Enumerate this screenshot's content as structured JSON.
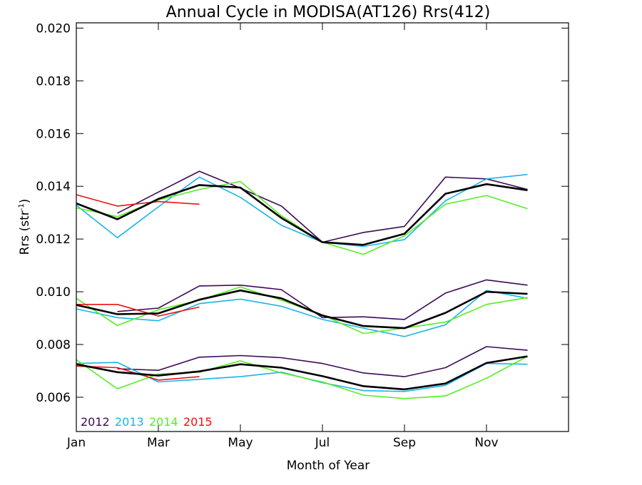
{
  "chart_data": {
    "type": "line",
    "title": "Annual Cycle in MODISA(AT126) Rrs(412)",
    "xlabel": "Month of Year",
    "ylabel": {
      "main": "Rrs (str",
      "sup": "-1",
      "close": ")"
    },
    "x_ticks": [
      {
        "label": "Jan",
        "month": 1
      },
      {
        "label": "Mar",
        "month": 3
      },
      {
        "label": "May",
        "month": 5
      },
      {
        "label": "Jul",
        "month": 7
      },
      {
        "label": "Sep",
        "month": 9
      },
      {
        "label": "Nov",
        "month": 11
      }
    ],
    "xlim": [
      1,
      13
    ],
    "ylim": [
      0.0047,
      0.0202
    ],
    "y_ticks": [
      0.006,
      0.008,
      0.01,
      0.012,
      0.014,
      0.016,
      0.018,
      0.02
    ],
    "y_tick_labels": [
      "0.006",
      "0.008",
      "0.010",
      "0.012",
      "0.014",
      "0.016",
      "0.018",
      "0.020"
    ],
    "grid": false,
    "legend_position": "bottom-left",
    "legend": [
      {
        "name": "2012",
        "color": "#3d0a55"
      },
      {
        "name": "2013",
        "color": "#1ab4ea"
      },
      {
        "name": "2014",
        "color": "#55ee22"
      },
      {
        "name": "2015",
        "color": "#ee1111"
      }
    ],
    "series": [
      {
        "name": "2012",
        "color": "#3d0a55",
        "group": "upper",
        "x": [
          2,
          3,
          4,
          5,
          6,
          7,
          8,
          9,
          10,
          11,
          12
        ],
        "y": [
          0.01298,
          0.01378,
          0.01457,
          0.01393,
          0.01325,
          0.01188,
          0.01225,
          0.01248,
          0.01435,
          0.01428,
          0.01388
        ]
      },
      {
        "name": "2013",
        "color": "#1ab4ea",
        "group": "upper",
        "x": [
          1,
          2,
          3,
          4,
          5,
          6,
          7,
          8,
          9,
          10,
          11,
          12
        ],
        "y": [
          0.01328,
          0.01205,
          0.01322,
          0.01435,
          0.01358,
          0.01252,
          0.01188,
          0.01172,
          0.01198,
          0.01345,
          0.01428,
          0.01445
        ]
      },
      {
        "name": "2014",
        "color": "#55ee22",
        "group": "upper",
        "x": [
          1,
          2,
          3,
          4,
          5,
          6,
          7,
          8,
          9,
          10,
          11,
          12
        ],
        "y": [
          0.01318,
          0.01285,
          0.01348,
          0.01388,
          0.01418,
          0.01288,
          0.01188,
          0.01142,
          0.01212,
          0.01332,
          0.01365,
          0.01315
        ]
      },
      {
        "name": "2015",
        "color": "#ee1111",
        "group": "upper",
        "x": [
          1,
          2,
          3,
          4
        ],
        "y": [
          0.01368,
          0.01325,
          0.01342,
          0.01332
        ]
      },
      {
        "name": "",
        "color": "#000000",
        "group": "upper",
        "bold": true,
        "x": [
          1,
          2,
          3,
          4,
          5,
          6,
          7,
          8,
          9,
          10,
          11,
          12
        ],
        "y": [
          0.01335,
          0.01275,
          0.01352,
          0.01405,
          0.01395,
          0.0128,
          0.01188,
          0.01178,
          0.0122,
          0.01372,
          0.01408,
          0.01385
        ]
      },
      {
        "name": "2012",
        "color": "#3d0a55",
        "group": "middle",
        "x": [
          2,
          3,
          4,
          5,
          6,
          7,
          8,
          9,
          10,
          11,
          12
        ],
        "y": [
          0.00925,
          0.00938,
          0.01022,
          0.01025,
          0.01008,
          0.00902,
          0.00905,
          0.00895,
          0.00995,
          0.01045,
          0.01025
        ]
      },
      {
        "name": "2013",
        "color": "#1ab4ea",
        "group": "middle",
        "x": [
          1,
          2,
          3,
          4,
          5,
          6,
          7,
          8,
          9,
          10,
          11,
          12
        ],
        "y": [
          0.00935,
          0.00902,
          0.0089,
          0.00955,
          0.00972,
          0.00945,
          0.00895,
          0.00862,
          0.0083,
          0.00875,
          0.01005,
          0.00975
        ]
      },
      {
        "name": "2014",
        "color": "#55ee22",
        "group": "middle",
        "x": [
          1,
          2,
          3,
          4,
          5,
          6,
          7,
          8,
          9,
          10,
          11,
          12
        ],
        "y": [
          0.00975,
          0.00872,
          0.00932,
          0.00968,
          0.01018,
          0.00968,
          0.00912,
          0.00842,
          0.00862,
          0.00885,
          0.00952,
          0.00978
        ]
      },
      {
        "name": "2015",
        "color": "#ee1111",
        "group": "middle",
        "x": [
          1,
          2,
          3,
          4
        ],
        "y": [
          0.00952,
          0.00952,
          0.00908,
          0.00942
        ]
      },
      {
        "name": "",
        "color": "#000000",
        "group": "middle",
        "bold": true,
        "x": [
          1,
          2,
          3,
          4,
          5,
          6,
          7,
          8,
          9,
          10,
          11,
          12
        ],
        "y": [
          0.0095,
          0.00915,
          0.00918,
          0.0097,
          0.01005,
          0.00975,
          0.0091,
          0.0087,
          0.00862,
          0.0092,
          0.01,
          0.00992
        ]
      },
      {
        "name": "2012",
        "color": "#3d0a55",
        "group": "lower",
        "x": [
          2,
          3,
          4,
          5,
          6,
          7,
          8,
          9,
          10,
          11,
          12
        ],
        "y": [
          0.00708,
          0.00702,
          0.00752,
          0.00758,
          0.0075,
          0.00728,
          0.00692,
          0.00678,
          0.00712,
          0.00792,
          0.00778
        ]
      },
      {
        "name": "2013",
        "color": "#1ab4ea",
        "group": "lower",
        "x": [
          1,
          2,
          3,
          4,
          5,
          6,
          7,
          8,
          9,
          10,
          11,
          12
        ],
        "y": [
          0.00728,
          0.00732,
          0.00658,
          0.00668,
          0.00678,
          0.00695,
          0.00655,
          0.00625,
          0.00622,
          0.00645,
          0.00728,
          0.00725
        ]
      },
      {
        "name": "2014",
        "color": "#55ee22",
        "group": "lower",
        "x": [
          1,
          2,
          3,
          4,
          5,
          6,
          7,
          8,
          9,
          10,
          11,
          12
        ],
        "y": [
          0.00742,
          0.00632,
          0.00688,
          0.00695,
          0.00738,
          0.00692,
          0.00658,
          0.00608,
          0.00595,
          0.00605,
          0.00672,
          0.00755
        ]
      },
      {
        "name": "2015",
        "color": "#ee1111",
        "group": "lower",
        "x": [
          1,
          2,
          3,
          4
        ],
        "y": [
          0.00718,
          0.00712,
          0.00665,
          0.00678
        ]
      },
      {
        "name": "",
        "color": "#000000",
        "group": "lower",
        "bold": true,
        "x": [
          1,
          2,
          3,
          4,
          5,
          6,
          7,
          8,
          9,
          10,
          11,
          12
        ],
        "y": [
          0.00725,
          0.00695,
          0.00682,
          0.00698,
          0.00725,
          0.00712,
          0.0068,
          0.00642,
          0.0063,
          0.00652,
          0.0073,
          0.00755
        ]
      }
    ]
  }
}
